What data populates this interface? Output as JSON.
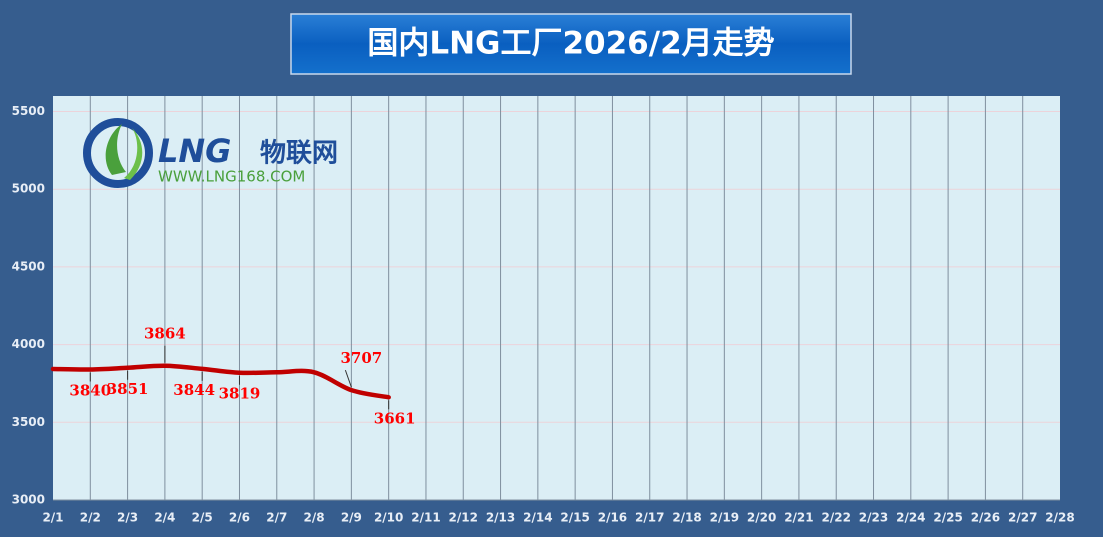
{
  "chart_data": {
    "type": "line",
    "title": "国内LNG工厂2026/2月走势",
    "categories": [
      "2/1",
      "2/2",
      "2/3",
      "2/4",
      "2/5",
      "2/6",
      "2/7",
      "2/8",
      "2/9",
      "2/10",
      "2/11",
      "2/12",
      "2/13",
      "2/14",
      "2/15",
      "2/16",
      "2/17",
      "2/18",
      "2/19",
      "2/20",
      "2/21",
      "2/22",
      "2/23",
      "2/24",
      "2/25",
      "2/26",
      "2/27",
      "2/28"
    ],
    "series": [
      {
        "color": "#c00000",
        "values": [
          3843,
          3840,
          3851,
          3864,
          3844,
          3819,
          3822,
          3822,
          3707,
          3661,
          null,
          null,
          null,
          null,
          null,
          null,
          null,
          null,
          null,
          null,
          null,
          null,
          null,
          null,
          null,
          null,
          null,
          null
        ],
        "value_labels": [
          null,
          "3840",
          "3851",
          "3864",
          "3844",
          "3819",
          null,
          null,
          "3707",
          "3661",
          null,
          null,
          null,
          null,
          null,
          null,
          null,
          null,
          null,
          null,
          null,
          null,
          null,
          null,
          null,
          null,
          null,
          null
        ]
      }
    ],
    "ylim": [
      3000,
      5600
    ],
    "yticks": [
      3000,
      3500,
      4000,
      4500,
      5000,
      5500
    ],
    "grid": true
  },
  "watermark": {
    "brand": "LNG",
    "name": "物联网",
    "url": "WWW.LNG168.COM"
  }
}
